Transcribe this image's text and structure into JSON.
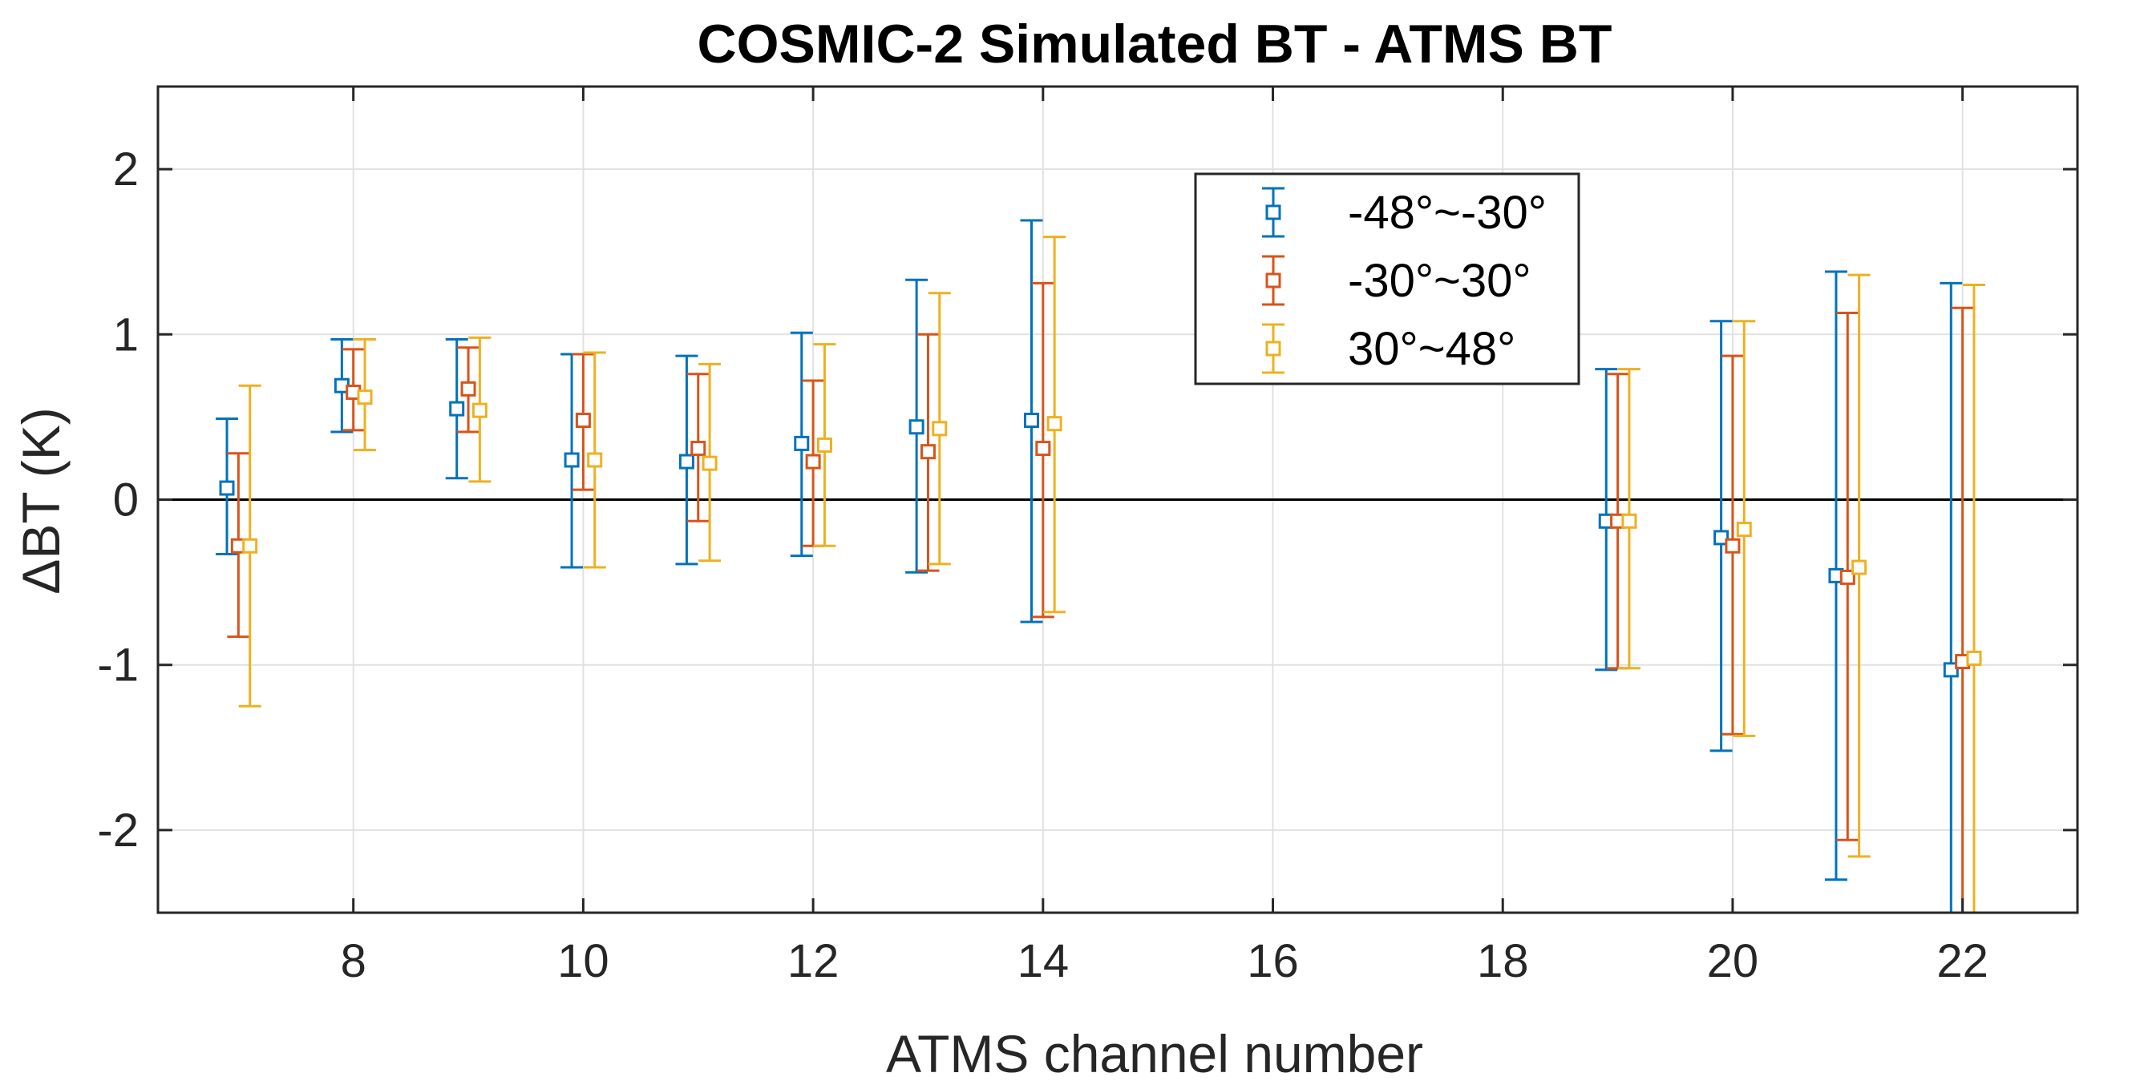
{
  "chart_data": {
    "type": "errorbar",
    "title": "COSMIC-2 Simulated BT - ATMS BT",
    "xlabel": "ATMS channel number",
    "ylabel": "ΔBT (K)",
    "xlim": [
      6.3,
      23
    ],
    "ylim": [
      -2.5,
      2.5
    ],
    "xticks": [
      8,
      10,
      12,
      14,
      16,
      18,
      20,
      22
    ],
    "yticks": [
      -2,
      -1,
      0,
      1,
      2
    ],
    "xtick_labels": [
      "8",
      "10",
      "12",
      "14",
      "16",
      "18",
      "20",
      "22"
    ],
    "ytick_labels": [
      "-2",
      "-1",
      "0",
      "1",
      "2"
    ],
    "grid": true,
    "zero_line": true,
    "legend_position": "top-center",
    "series": [
      {
        "name": "-48°~-30°",
        "color": "#0072BD",
        "x_offset": -0.1,
        "channels": [
          7,
          8,
          9,
          10,
          11,
          12,
          13,
          14,
          19,
          20,
          21,
          22
        ],
        "mean": [
          0.07,
          0.69,
          0.55,
          0.24,
          0.23,
          0.34,
          0.44,
          0.48,
          -0.13,
          -0.23,
          -0.46,
          -1.03
        ],
        "upper": [
          0.49,
          0.97,
          0.97,
          0.88,
          0.87,
          1.01,
          1.33,
          1.69,
          0.79,
          1.08,
          1.38,
          1.31
        ],
        "lower": [
          -0.33,
          0.41,
          0.13,
          -0.41,
          -0.39,
          -0.34,
          -0.44,
          -0.74,
          -1.03,
          -1.52,
          -2.3,
          -2.5
        ]
      },
      {
        "name": "-30°~30°",
        "color": "#D95319",
        "x_offset": 0,
        "channels": [
          7,
          8,
          9,
          10,
          11,
          12,
          13,
          14,
          19,
          20,
          21,
          22
        ],
        "mean": [
          -0.28,
          0.65,
          0.67,
          0.48,
          0.31,
          0.23,
          0.29,
          0.31,
          -0.13,
          -0.28,
          -0.47,
          -0.98
        ],
        "upper": [
          0.28,
          0.91,
          0.92,
          0.88,
          0.76,
          0.72,
          1.0,
          1.31,
          0.76,
          0.87,
          1.13,
          1.16
        ],
        "lower": [
          -0.83,
          0.42,
          0.41,
          0.06,
          -0.13,
          -0.28,
          -0.43,
          -0.71,
          -1.02,
          -1.42,
          -2.06,
          -2.5
        ]
      },
      {
        "name": "30°~48°",
        "color": "#EDB120",
        "x_offset": 0.1,
        "channels": [
          7,
          8,
          9,
          10,
          11,
          12,
          13,
          14,
          19,
          20,
          21,
          22
        ],
        "mean": [
          -0.28,
          0.62,
          0.54,
          0.24,
          0.22,
          0.33,
          0.43,
          0.46,
          -0.13,
          -0.18,
          -0.41,
          -0.96
        ],
        "upper": [
          0.69,
          0.97,
          0.98,
          0.89,
          0.82,
          0.94,
          1.25,
          1.59,
          0.79,
          1.08,
          1.36,
          1.3
        ],
        "lower": [
          -1.25,
          0.3,
          0.11,
          -0.41,
          -0.37,
          -0.28,
          -0.39,
          -0.68,
          -1.02,
          -1.43,
          -2.16,
          -2.5
        ]
      }
    ]
  }
}
